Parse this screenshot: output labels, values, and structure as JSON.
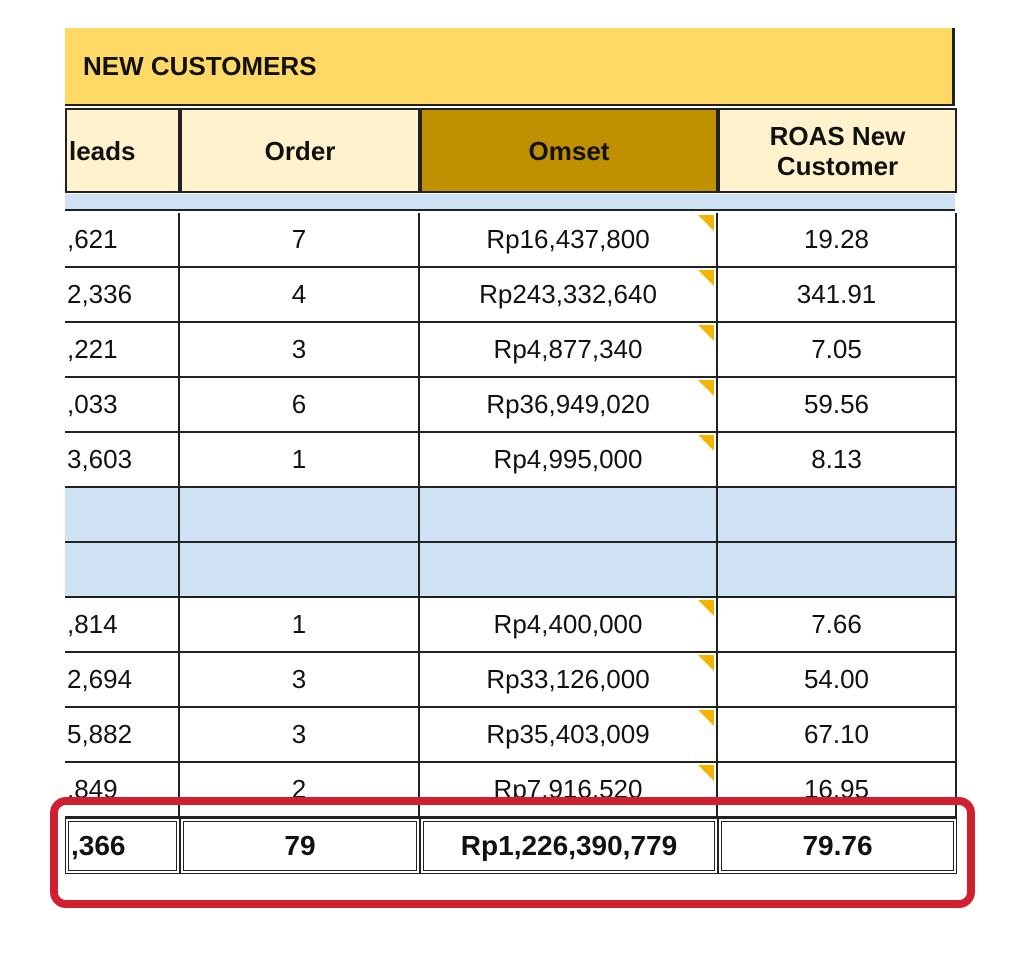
{
  "title": "NEW CUSTOMERS",
  "columns": [
    "leads",
    "Order",
    "Omset",
    "ROAS New Customer"
  ],
  "groups": [
    [
      [
        ",621",
        "7",
        "Rp16,437,800",
        "19.28"
      ],
      [
        "2,336",
        "4",
        "Rp243,332,640",
        "341.91"
      ],
      [
        ",221",
        "3",
        "Rp4,877,340",
        "7.05"
      ],
      [
        ",033",
        "6",
        "Rp36,949,020",
        "59.56"
      ],
      [
        "3,603",
        "1",
        "Rp4,995,000",
        "8.13"
      ]
    ],
    [
      [
        ",814",
        "1",
        "Rp4,400,000",
        "7.66"
      ],
      [
        "2,694",
        "3",
        "Rp33,126,000",
        "54.00"
      ],
      [
        "5,882",
        "3",
        "Rp35,403,009",
        "67.10"
      ],
      [
        ",849",
        "2",
        "Rp7,916,520",
        "16.95"
      ]
    ]
  ],
  "total": [
    ",366",
    "79",
    "Rp1,226,390,779",
    "79.76"
  ]
}
